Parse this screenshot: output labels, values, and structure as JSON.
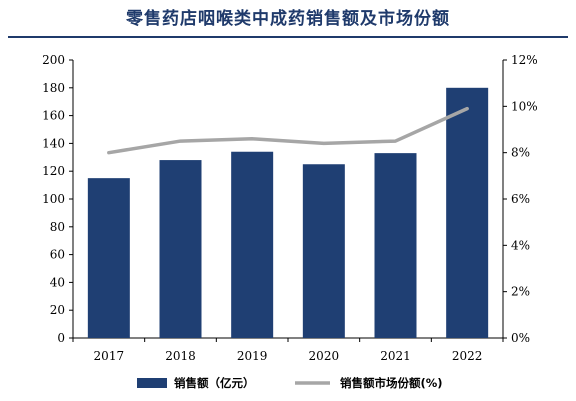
{
  "title": "零售药店咽喉类中成药销售额及市场份额",
  "chart_data": {
    "type": "bar",
    "categories": [
      "2017",
      "2018",
      "2019",
      "2020",
      "2021",
      "2022"
    ],
    "series": [
      {
        "name": "销售额（亿元）",
        "type": "bar",
        "axis": "left",
        "color": "#1f3f73",
        "values": [
          115,
          128,
          134,
          125,
          133,
          180
        ]
      },
      {
        "name": "销售额市场份额(%)",
        "type": "line",
        "axis": "right",
        "color": "#a6a6a6",
        "values": [
          8.0,
          8.5,
          8.6,
          8.4,
          8.5,
          9.9
        ]
      }
    ],
    "y_left": {
      "min": 0,
      "max": 200,
      "step": 20,
      "ticks": [
        "0",
        "20",
        "40",
        "60",
        "80",
        "100",
        "120",
        "140",
        "160",
        "180",
        "200"
      ]
    },
    "y_right": {
      "min": 0,
      "max": 12,
      "step": 2,
      "ticks": [
        "0%",
        "2%",
        "4%",
        "6%",
        "8%",
        "10%",
        "12%"
      ]
    },
    "grid": false,
    "legend_position": "bottom"
  }
}
